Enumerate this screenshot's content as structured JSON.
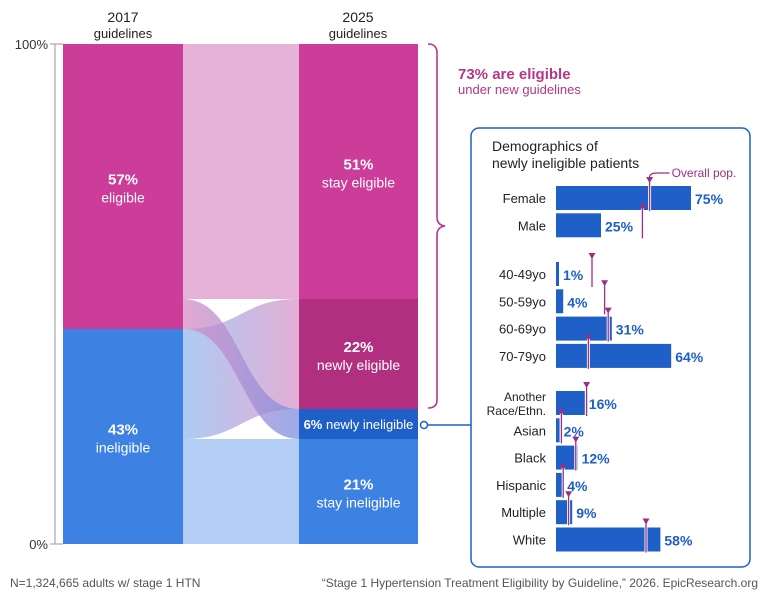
{
  "chart_data": {
    "type": "sankey",
    "columns": [
      {
        "title_line1": "2017",
        "title_line2": "guidelines"
      },
      {
        "title_line1": "2025",
        "title_line2": "guidelines"
      }
    ],
    "axis": {
      "top_label": "100%",
      "bottom_label": "0%"
    },
    "left_blocks": [
      {
        "pct": "57%",
        "label": "eligible",
        "value": 57,
        "color": "#cc3d9a"
      },
      {
        "pct": "43%",
        "label": "ineligible",
        "value": 43,
        "color": "#3d82e3"
      }
    ],
    "right_blocks": [
      {
        "pct": "51%",
        "label": "stay eligible",
        "value": 51,
        "color": "#cc3d9a"
      },
      {
        "pct": "22%",
        "label": "newly eligible",
        "value": 22,
        "color": "#b0307f"
      },
      {
        "pct": "6%",
        "label": "newly ineligible",
        "value": 6,
        "color": "#1f5fc8"
      },
      {
        "pct": "21%",
        "label": "stay ineligible",
        "value": 21,
        "color": "#3d82e3"
      }
    ],
    "flows": [
      {
        "from": "eligible",
        "to": "stay eligible",
        "value": 51
      },
      {
        "from": "eligible",
        "to": "newly ineligible",
        "value": 6
      },
      {
        "from": "ineligible",
        "to": "newly eligible",
        "value": 22
      },
      {
        "from": "ineligible",
        "to": "stay ineligible",
        "value": 21
      }
    ],
    "brace_annotation": {
      "headline": "73% are eligible",
      "subline": "under new guidelines",
      "value": 73
    },
    "demographics": {
      "title_line1": "Demographics of",
      "title_line2": "newly ineligible patients",
      "overall_label": "Overall pop.",
      "groups": [
        [
          {
            "label_lines": [
              "Female"
            ],
            "value": 75,
            "display": "75%",
            "overall": 52
          },
          {
            "label_lines": [
              "Male"
            ],
            "value": 25,
            "display": "25%",
            "overall": 48
          }
        ],
        [
          {
            "label_lines": [
              "40-49yo"
            ],
            "value": 1,
            "display": "1%",
            "overall": 20
          },
          {
            "label_lines": [
              "50-59yo"
            ],
            "value": 4,
            "display": "4%",
            "overall": 27
          },
          {
            "label_lines": [
              "60-69yo"
            ],
            "value": 31,
            "display": "31%",
            "overall": 29
          },
          {
            "label_lines": [
              "70-79yo"
            ],
            "value": 64,
            "display": "64%",
            "overall": 18
          }
        ],
        [
          {
            "label_lines": [
              "Another",
              "Race/Ethn."
            ],
            "value": 16,
            "display": "16%",
            "overall": 17
          },
          {
            "label_lines": [
              "Asian"
            ],
            "value": 2,
            "display": "2%",
            "overall": 3
          },
          {
            "label_lines": [
              "Black"
            ],
            "value": 12,
            "display": "12%",
            "overall": 11
          },
          {
            "label_lines": [
              "Hispanic"
            ],
            "value": 4,
            "display": "4%",
            "overall": 4
          },
          {
            "label_lines": [
              "Multiple"
            ],
            "value": 9,
            "display": "9%",
            "overall": 7
          },
          {
            "label_lines": [
              "White"
            ],
            "value": 58,
            "display": "58%",
            "overall": 50
          }
        ]
      ]
    },
    "footer": {
      "left": "N=1,324,665 adults w/ stage 1 HTN",
      "right": "“Stage 1 Hypertension Treatment Eligibility by Guideline,” 2026. EpicResearch.org"
    }
  }
}
